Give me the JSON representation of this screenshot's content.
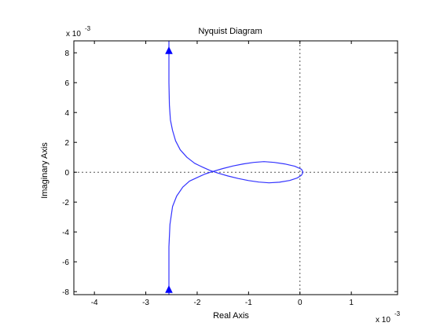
{
  "chart_data": {
    "type": "line",
    "title": "Nyquist Diagram",
    "xlabel": "Real Axis",
    "ylabel": "Imaginary Axis",
    "x_multiplier": "x 10",
    "x_multiplier_exp": "-3",
    "y_multiplier": "x 10",
    "y_multiplier_exp": "-3",
    "xlim": [
      -4.4,
      1.9
    ],
    "ylim": [
      -8.2,
      8.8
    ],
    "xticks": [
      -4,
      -3,
      -2,
      -1,
      0,
      1
    ],
    "xtick_labels": [
      "-4",
      "-3",
      "-2",
      "-1",
      "0",
      "1"
    ],
    "yticks": [
      -8,
      -6,
      -4,
      -2,
      0,
      2,
      4,
      6,
      8
    ],
    "ytick_labels": [
      "-8",
      "-6",
      "-4",
      "-2",
      "0",
      "2",
      "4",
      "6",
      "8"
    ],
    "grid": false,
    "reference_lines": {
      "x": 0,
      "y": 0,
      "style": "dotted"
    },
    "series": [
      {
        "color": "#3333ff",
        "x": [
          -2.55,
          -2.55,
          -2.55,
          -2.54,
          -2.52,
          -2.48,
          -2.42,
          -2.33,
          -2.2,
          -2.05,
          -1.9,
          -1.75,
          -1.6,
          -1.4,
          -1.2,
          -1.0,
          -0.8,
          -0.6,
          -0.4,
          -0.2,
          -0.05,
          0.03,
          0.06,
          0.03,
          -0.1,
          -0.3,
          -0.5,
          -0.7,
          -0.9,
          -1.1,
          -1.3,
          -1.5,
          -1.7,
          -1.85,
          -2.0,
          -2.15,
          -2.28,
          -2.4,
          -2.48,
          -2.53,
          -2.55,
          -2.55,
          -2.55
        ],
        "y": [
          8.8,
          8.1,
          6.0,
          4.5,
          3.5,
          2.8,
          2.1,
          1.5,
          1.0,
          0.6,
          0.35,
          0.12,
          -0.05,
          -0.25,
          -0.42,
          -0.56,
          -0.66,
          -0.71,
          -0.67,
          -0.55,
          -0.38,
          -0.2,
          0.0,
          0.2,
          0.4,
          0.56,
          0.66,
          0.71,
          0.66,
          0.56,
          0.42,
          0.25,
          0.05,
          -0.12,
          -0.35,
          -0.6,
          -1.0,
          -1.6,
          -2.3,
          -3.5,
          -5.0,
          -7.9,
          -8.2
        ]
      }
    ],
    "arrows": [
      {
        "x": -2.55,
        "y": 8.1,
        "direction": "up"
      },
      {
        "x": -2.55,
        "y": -7.9,
        "direction": "up"
      }
    ]
  }
}
